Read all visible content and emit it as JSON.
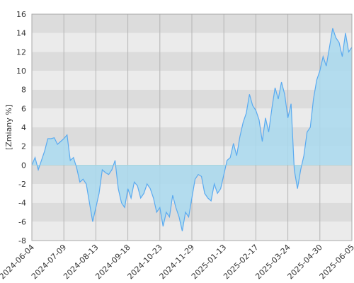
{
  "chart_data": {
    "type": "area",
    "y_label": "[Zmiany %]",
    "categories": [
      "2024-06-04",
      null,
      null,
      null,
      null,
      null,
      null,
      null,
      null,
      null,
      "2024-07-09",
      null,
      null,
      null,
      null,
      null,
      null,
      null,
      null,
      null,
      "2024-08-13",
      null,
      null,
      null,
      null,
      null,
      null,
      null,
      null,
      null,
      "2024-09-18",
      null,
      null,
      null,
      null,
      null,
      null,
      null,
      null,
      null,
      "2024-10-23",
      null,
      null,
      null,
      null,
      null,
      null,
      null,
      null,
      null,
      "2024-11-29",
      null,
      null,
      null,
      null,
      null,
      null,
      null,
      null,
      null,
      "2025-01-13",
      null,
      null,
      null,
      null,
      null,
      null,
      null,
      null,
      null,
      "2025-02-17",
      null,
      null,
      null,
      null,
      null,
      null,
      null,
      null,
      null,
      "2025-03-24",
      null,
      null,
      null,
      null,
      null,
      null,
      null,
      null,
      null,
      "2025-04-30",
      null,
      null,
      null,
      null,
      null,
      null,
      null,
      null,
      null,
      "2025-06-05"
    ],
    "values": [
      0,
      0.8,
      -0.5,
      0.5,
      1.5,
      2.8,
      2.8,
      2.9,
      2.2,
      2.5,
      2.8,
      3.2,
      0.5,
      0.8,
      -0.3,
      -1.8,
      -1.5,
      -2.0,
      -4.0,
      -6.0,
      -4.5,
      -3.0,
      -0.5,
      -0.8,
      -1.0,
      -0.5,
      0.5,
      -2.5,
      -4.0,
      -4.5,
      -2.5,
      -3.5,
      -1.8,
      -2.2,
      -3.5,
      -3.0,
      -2.0,
      -2.5,
      -3.5,
      -5.0,
      -4.5,
      -6.5,
      -5.0,
      -5.5,
      -3.2,
      -4.5,
      -5.5,
      -7.0,
      -5.0,
      -5.5,
      -3.5,
      -1.5,
      -1.0,
      -1.2,
      -3.0,
      -3.5,
      -3.8,
      -2.0,
      -3.0,
      -2.5,
      -1.0,
      0.5,
      0.8,
      2.3,
      1.0,
      3.0,
      4.5,
      5.5,
      7.5,
      6.3,
      5.8,
      4.8,
      2.5,
      5.0,
      3.5,
      6.0,
      8.2,
      7.0,
      8.8,
      7.5,
      5.0,
      6.5,
      -0.5,
      -2.5,
      -0.5,
      1.0,
      3.5,
      4.0,
      7.0,
      9.0,
      10.0,
      11.5,
      10.5,
      12.5,
      14.5,
      13.5,
      13.0,
      11.5,
      14.0,
      12.0,
      12.5
    ],
    "color": "#5aaaf0",
    "fill": "#a9d9ee",
    "ylim": [
      -8,
      16
    ],
    "yticks": [
      -8,
      -6,
      -4,
      -2,
      0,
      2,
      4,
      6,
      8,
      10,
      12,
      14,
      16
    ],
    "bands": [
      "#dcdcdc",
      "#ebebeb"
    ],
    "vgrid_color": "#b4b4b4"
  }
}
